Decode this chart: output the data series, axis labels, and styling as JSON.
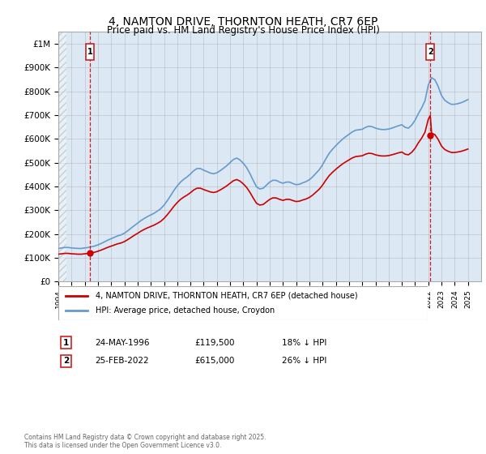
{
  "title": "4, NAMTON DRIVE, THORNTON HEATH, CR7 6EP",
  "subtitle": "Price paid vs. HM Land Registry's House Price Index (HPI)",
  "ylim": [
    0,
    1050000
  ],
  "xlim": [
    1994,
    2026
  ],
  "background_color": "#dce9f5",
  "grid_color": "#aaaaaa",
  "legend_label_red": "4, NAMTON DRIVE, THORNTON HEATH, CR7 6EP (detached house)",
  "legend_label_blue": "HPI: Average price, detached house, Croydon",
  "annotation1_date": "24-MAY-1996",
  "annotation1_price": "£119,500",
  "annotation1_hpi": "18% ↓ HPI",
  "annotation2_date": "25-FEB-2022",
  "annotation2_price": "£615,000",
  "annotation2_hpi": "26% ↓ HPI",
  "footer": "Contains HM Land Registry data © Crown copyright and database right 2025.\nThis data is licensed under the Open Government Licence v3.0.",
  "hpi_years": [
    1994.0,
    1994.25,
    1994.5,
    1994.75,
    1995.0,
    1995.25,
    1995.5,
    1995.75,
    1996.0,
    1996.25,
    1996.5,
    1996.75,
    1997.0,
    1997.25,
    1997.5,
    1997.75,
    1998.0,
    1998.25,
    1998.5,
    1998.75,
    1999.0,
    1999.25,
    1999.5,
    1999.75,
    2000.0,
    2000.25,
    2000.5,
    2000.75,
    2001.0,
    2001.25,
    2001.5,
    2001.75,
    2002.0,
    2002.25,
    2002.5,
    2002.75,
    2003.0,
    2003.25,
    2003.5,
    2003.75,
    2004.0,
    2004.25,
    2004.5,
    2004.75,
    2005.0,
    2005.25,
    2005.5,
    2005.75,
    2006.0,
    2006.25,
    2006.5,
    2006.75,
    2007.0,
    2007.25,
    2007.5,
    2007.75,
    2008.0,
    2008.25,
    2008.5,
    2008.75,
    2009.0,
    2009.25,
    2009.5,
    2009.75,
    2010.0,
    2010.25,
    2010.5,
    2010.75,
    2011.0,
    2011.25,
    2011.5,
    2011.75,
    2012.0,
    2012.25,
    2012.5,
    2012.75,
    2013.0,
    2013.25,
    2013.5,
    2013.75,
    2014.0,
    2014.25,
    2014.5,
    2014.75,
    2015.0,
    2015.25,
    2015.5,
    2015.75,
    2016.0,
    2016.25,
    2016.5,
    2016.75,
    2017.0,
    2017.25,
    2017.5,
    2017.75,
    2018.0,
    2018.25,
    2018.5,
    2018.75,
    2019.0,
    2019.25,
    2019.5,
    2019.75,
    2020.0,
    2020.25,
    2020.5,
    2020.75,
    2021.0,
    2021.25,
    2021.5,
    2021.75,
    2022.0,
    2022.25,
    2022.5,
    2022.75,
    2023.0,
    2023.25,
    2023.5,
    2023.75,
    2024.0,
    2024.25,
    2024.5,
    2024.75,
    2025.0
  ],
  "hpi_values": [
    139000,
    141000,
    143000,
    143000,
    141000,
    140000,
    139000,
    139000,
    141000,
    143000,
    146000,
    149000,
    154000,
    160000,
    167000,
    174000,
    180000,
    186000,
    192000,
    196000,
    203000,
    213000,
    224000,
    235000,
    245000,
    256000,
    265000,
    273000,
    280000,
    287000,
    296000,
    306000,
    321000,
    340000,
    361000,
    383000,
    402000,
    418000,
    430000,
    440000,
    452000,
    466000,
    475000,
    475000,
    468000,
    462000,
    456000,
    453000,
    457000,
    466000,
    476000,
    487000,
    500000,
    513000,
    519000,
    511000,
    497000,
    479000,
    454000,
    425000,
    398000,
    389000,
    392000,
    405000,
    418000,
    426000,
    425000,
    418000,
    413000,
    418000,
    418000,
    412000,
    407000,
    409000,
    415000,
    420000,
    428000,
    440000,
    455000,
    470000,
    491000,
    516000,
    539000,
    556000,
    571000,
    585000,
    598000,
    609000,
    619000,
    629000,
    636000,
    638000,
    640000,
    648000,
    653000,
    651000,
    645000,
    641000,
    639000,
    639000,
    641000,
    645000,
    650000,
    655000,
    659000,
    648000,
    645000,
    658000,
    678000,
    706000,
    730000,
    760000,
    826000,
    857000,
    848000,
    820000,
    782000,
    762000,
    752000,
    745000,
    745000,
    748000,
    752000,
    758000,
    765000
  ],
  "sale_years": [
    1996.39,
    2022.15
  ],
  "sale_values": [
    119500,
    615000
  ],
  "red_line_color": "#cc0000",
  "blue_line_color": "#6699cc",
  "dot_color": "#cc0000",
  "vline_color": "#dd0000",
  "box_color": "#cc2222",
  "yticks": [
    0,
    100000,
    200000,
    300000,
    400000,
    500000,
    600000,
    700000,
    800000,
    900000,
    1000000
  ],
  "ylabels": [
    "£0",
    "£100K",
    "£200K",
    "£300K",
    "£400K",
    "£500K",
    "£600K",
    "£700K",
    "£800K",
    "£900K",
    "£1M"
  ]
}
